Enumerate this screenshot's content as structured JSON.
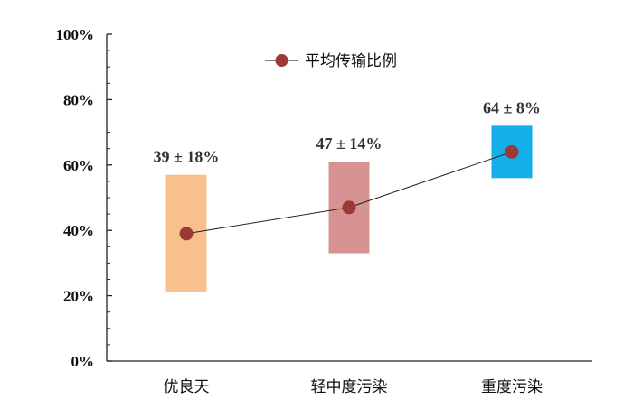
{
  "chart_data": {
    "type": "line",
    "categories": [
      "优良天",
      "轻中度污染",
      "重度污染"
    ],
    "series": [
      {
        "name": "平均传输比例",
        "values": [
          39,
          47,
          64
        ],
        "color": "#9B3A35"
      }
    ],
    "ranges": [
      {
        "low": 21,
        "high": 57,
        "color": "#F9C08E"
      },
      {
        "low": 33,
        "high": 61,
        "color": "#D79391"
      },
      {
        "low": 56,
        "high": 72,
        "color": "#14AEEB"
      }
    ],
    "data_labels": [
      "39 ± 18%",
      "47 ± 14%",
      "64 ± 8%"
    ],
    "yticks": [
      "0%",
      "20%",
      "40%",
      "60%",
      "80%",
      "100%"
    ],
    "ylim": [
      0,
      100
    ],
    "title": "",
    "xlabel": "",
    "ylabel": "",
    "grid": false,
    "legend": "top-center"
  }
}
